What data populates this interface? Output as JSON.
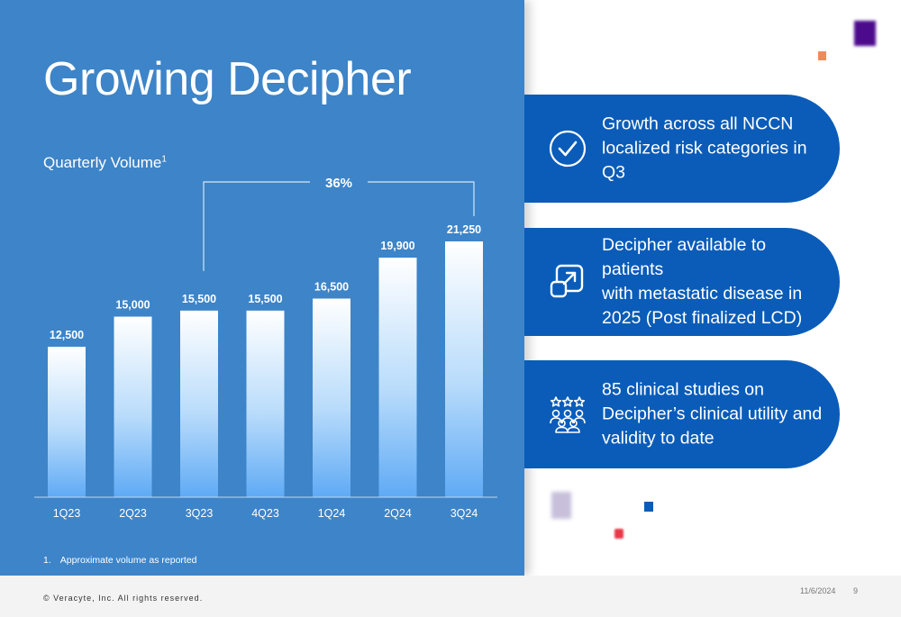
{
  "slide": {
    "title": "Growing Decipher",
    "subtitle": "Quarterly Volume",
    "subtitle_footnote_ref": "1",
    "footnote_number": "1.",
    "footnote_text": "Approximate volume as reported"
  },
  "chart_data": {
    "type": "bar",
    "categories": [
      "1Q23",
      "2Q23",
      "3Q23",
      "4Q23",
      "1Q24",
      "2Q24",
      "3Q24"
    ],
    "values": [
      12500,
      15000,
      15500,
      15500,
      16500,
      19900,
      21250
    ],
    "value_labels": [
      "12,500",
      "15,000",
      "15,500",
      "15,500",
      "16,500",
      "19,900",
      "21,250"
    ],
    "ylim": [
      0,
      21250
    ],
    "grid": false,
    "annotation": {
      "text": "36%",
      "from": "3Q23",
      "to": "3Q24"
    }
  },
  "callouts": [
    {
      "icon": "check-circle-icon",
      "text_lines": [
        "Growth across all NCCN",
        "localized risk categories in Q3"
      ]
    },
    {
      "icon": "expand-arrow-icon",
      "text_lines": [
        "Decipher available to patients",
        "with metastatic disease in",
        "2025 (Post finalized LCD)"
      ]
    },
    {
      "icon": "people-stars-icon",
      "text_lines": [
        "85 clinical studies on",
        "Decipher’s clinical utility and",
        "validity to date"
      ]
    }
  ],
  "footer": {
    "copyright": "© Veracyte, Inc.  All rights reserved.",
    "date": "11/6/2024",
    "page_number": "9"
  },
  "colors": {
    "panel_blue": "#3d84c8",
    "callout_blue": "#0a5cb8",
    "bar_top": "#ffffff",
    "bar_bottom": "#5faaf5"
  }
}
